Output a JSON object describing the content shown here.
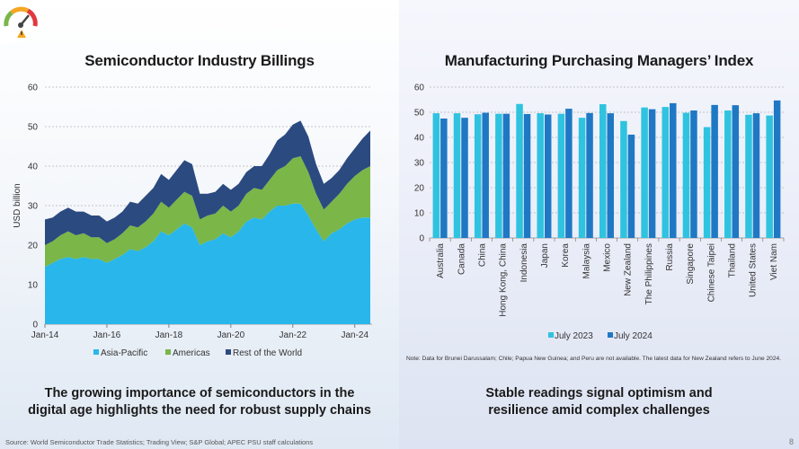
{
  "left": {
    "title": "Semiconductor Industry Billings",
    "caption_line1": "The growing importance of semiconductors in the",
    "caption_line2": "digital age highlights the need for robust supply chains"
  },
  "right": {
    "title": "Manufacturing Purchasing Managers’ Index",
    "caption_line1": "Stable readings signal optimism and",
    "caption_line2": "resilience amid complex challenges",
    "note": "Note: Data for Brunei Darussalam; Chile; Papua New Guinea; and Peru are not available. The latest data for New Zealand refers to June 2024."
  },
  "footer": {
    "source": "Source: World Semiconductor Trade Statistics; Trading View; S&P Global; APEC PSU staff calculations",
    "page_number": "8"
  },
  "colors": {
    "asia_pacific": "#29b6ea",
    "americas": "#7ab648",
    "rest_of_world": "#2b4a80",
    "july_2023": "#2fc3e0",
    "july_2024": "#1f78c4"
  },
  "chart_data": [
    {
      "type": "area",
      "stacked": true,
      "title": "Semiconductor Industry Billings",
      "ylabel": "USD billion",
      "ylim": [
        0,
        60
      ],
      "yticks": [
        0,
        10,
        20,
        30,
        40,
        50,
        60
      ],
      "xtick_labels": [
        "Jan-14",
        "Jan-16",
        "Jan-18",
        "Jan-20",
        "Jan-22",
        "Jan-24"
      ],
      "x_start": "Jan-14",
      "x_end": "Jul-24",
      "legend_position": "bottom",
      "grid": true,
      "x": [
        "Jan-14",
        "Apr-14",
        "Jul-14",
        "Oct-14",
        "Jan-15",
        "Apr-15",
        "Jul-15",
        "Oct-15",
        "Jan-16",
        "Apr-16",
        "Jul-16",
        "Oct-16",
        "Jan-17",
        "Apr-17",
        "Jul-17",
        "Oct-17",
        "Jan-18",
        "Apr-18",
        "Jul-18",
        "Oct-18",
        "Jan-19",
        "Apr-19",
        "Jul-19",
        "Oct-19",
        "Jan-20",
        "Apr-20",
        "Jul-20",
        "Oct-20",
        "Jan-21",
        "Apr-21",
        "Jul-21",
        "Oct-21",
        "Jan-22",
        "Apr-22",
        "Jul-22",
        "Oct-22",
        "Jan-23",
        "Apr-23",
        "Jul-23",
        "Oct-23",
        "Jan-24",
        "Apr-24",
        "Jul-24"
      ],
      "series": [
        {
          "name": "Asia-Pacific",
          "values": [
            14.5,
            15.5,
            16.5,
            17,
            16.5,
            17,
            16.5,
            16.5,
            15.5,
            16.5,
            17.5,
            19,
            18.5,
            19.5,
            21,
            23.5,
            22.5,
            24,
            25.5,
            24.5,
            20,
            21,
            21.5,
            23,
            22,
            23.5,
            26,
            27,
            26.5,
            28.5,
            30,
            30,
            30.5,
            30.5,
            27.5,
            24,
            21,
            23,
            24,
            25.5,
            26.5,
            27,
            27
          ]
        },
        {
          "name": "Americas",
          "values": [
            5.5,
            5.5,
            6,
            6.5,
            6,
            6,
            5.5,
            5.5,
            5,
            5,
            5.5,
            6,
            6,
            6.5,
            7,
            7.5,
            7,
            7.5,
            8,
            8,
            6.5,
            6.5,
            6.5,
            7,
            6.5,
            6.5,
            7,
            7.5,
            7.5,
            8,
            9,
            10,
            11.5,
            12,
            11,
            9,
            8,
            8,
            9,
            10,
            11,
            12,
            13
          ]
        },
        {
          "name": "Rest of the World",
          "values": [
            6.5,
            6,
            6,
            6,
            6,
            5.5,
            5.5,
            5.5,
            5.5,
            5.5,
            5.5,
            6,
            6,
            6.5,
            6.5,
            7,
            7,
            7.5,
            8,
            8,
            6.5,
            5.5,
            5.5,
            5.5,
            5.5,
            5.5,
            5.5,
            5.5,
            6,
            6.5,
            7.5,
            8,
            8.5,
            9,
            9,
            7.5,
            6.5,
            6,
            6,
            6.5,
            7,
            8,
            9
          ]
        }
      ]
    },
    {
      "type": "bar",
      "title": "Manufacturing Purchasing Managers’ Index",
      "ylim": [
        0,
        60
      ],
      "yticks": [
        0,
        10,
        20,
        30,
        40,
        50,
        60
      ],
      "legend_position": "bottom",
      "grid": true,
      "categories": [
        "Australia",
        "Canada",
        "China",
        "Hong Kong, China",
        "Indonesia",
        "Japan",
        "Korea",
        "Malaysia",
        "Mexico",
        "New Zealand",
        "The Philippines",
        "Russia",
        "Singapore",
        "Chinese Taipei",
        "Thailand",
        "United States",
        "Viet Nam"
      ],
      "series": [
        {
          "name": "July 2023",
          "values": [
            49.6,
            49.6,
            49.2,
            49.4,
            53.3,
            49.6,
            49.4,
            47.8,
            53.2,
            46.5,
            51.9,
            52.1,
            49.8,
            44.1,
            50.7,
            49,
            48.7
          ]
        },
        {
          "name": "July 2024",
          "values": [
            47.5,
            47.8,
            49.8,
            49.4,
            49.3,
            49.1,
            51.4,
            49.7,
            49.6,
            41.1,
            51.2,
            53.6,
            50.7,
            52.9,
            52.8,
            49.6,
            54.7
          ]
        }
      ]
    }
  ]
}
